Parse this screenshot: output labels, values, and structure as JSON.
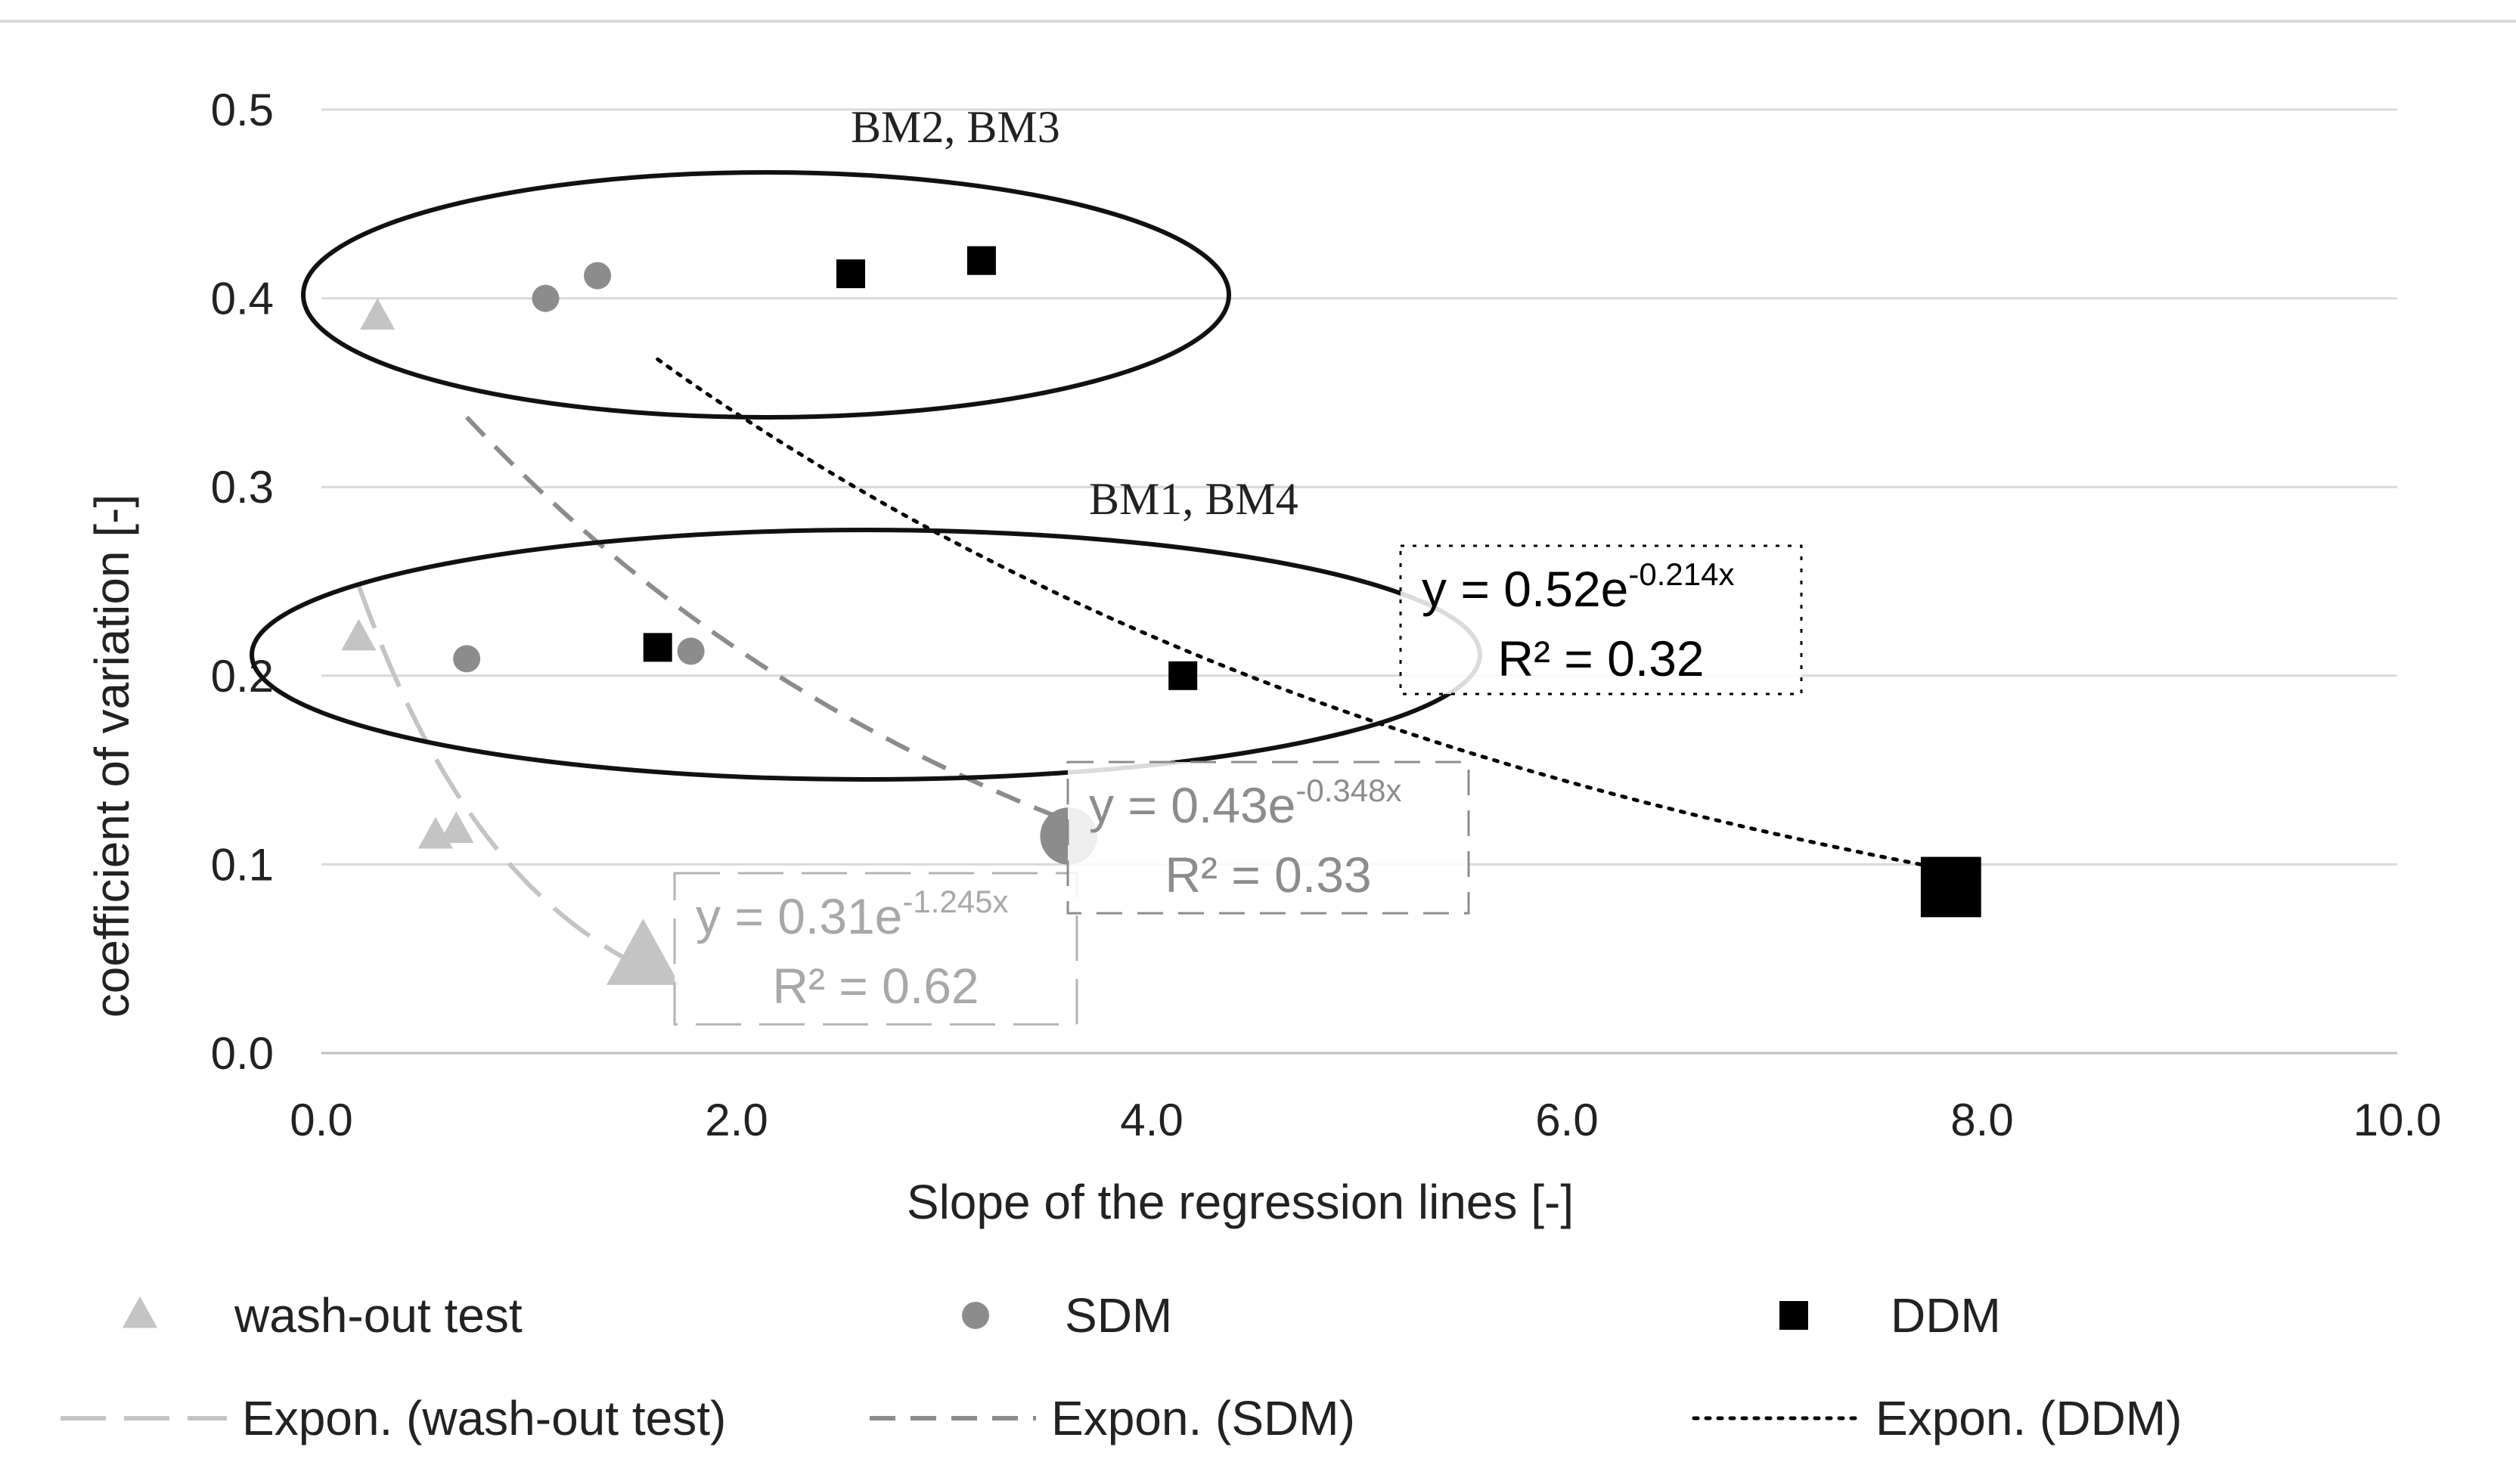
{
  "chart_data": {
    "type": "scatter",
    "xlabel": "Slope of the regression lines [-]",
    "ylabel": "coefficient of variation [-]",
    "xlim": [
      0,
      10
    ],
    "ylim": [
      0,
      0.5
    ],
    "x_ticks": [
      "0.0",
      "2.0",
      "4.0",
      "6.0",
      "8.0",
      "10.0"
    ],
    "y_ticks": [
      "0.0",
      "0.1",
      "0.2",
      "0.3",
      "0.4",
      "0.5"
    ],
    "grid": true,
    "series": [
      {
        "name": "wash-out test",
        "marker": "triangle",
        "color": "#c4c4c4",
        "points": [
          {
            "x": 0.27,
            "y": 0.39,
            "size": "small"
          },
          {
            "x": 0.18,
            "y": 0.22,
            "size": "small"
          },
          {
            "x": 0.55,
            "y": 0.115,
            "size": "small"
          },
          {
            "x": 0.65,
            "y": 0.118,
            "size": "small"
          },
          {
            "x": 1.55,
            "y": 0.05,
            "size": "large"
          }
        ]
      },
      {
        "name": "SDM",
        "marker": "circle",
        "color": "#8c8c8c",
        "points": [
          {
            "x": 1.08,
            "y": 0.4,
            "size": "small"
          },
          {
            "x": 1.33,
            "y": 0.412,
            "size": "small"
          },
          {
            "x": 0.7,
            "y": 0.209,
            "size": "small"
          },
          {
            "x": 1.78,
            "y": 0.213,
            "size": "small"
          },
          {
            "x": 3.6,
            "y": 0.115,
            "size": "large"
          }
        ]
      },
      {
        "name": "DDM",
        "marker": "square",
        "color": "#000000",
        "points": [
          {
            "x": 2.55,
            "y": 0.413,
            "size": "small"
          },
          {
            "x": 3.18,
            "y": 0.42,
            "size": "small"
          },
          {
            "x": 1.62,
            "y": 0.215,
            "size": "small"
          },
          {
            "x": 4.15,
            "y": 0.2,
            "size": "small"
          },
          {
            "x": 7.85,
            "y": 0.088,
            "size": "large"
          }
        ]
      }
    ],
    "trendlines": [
      {
        "name": "Expon. (wash-out test)",
        "series": "wash-out test",
        "a": 0.31,
        "b": -1.245,
        "x_range": [
          0.18,
          1.55
        ],
        "color": "#c4c4c4",
        "style": "long-dash",
        "equation_prefix": "y = 0.31e",
        "equation_exponent": "-1.245x",
        "r2": "R² = 0.62"
      },
      {
        "name": "Expon. (SDM)",
        "series": "SDM",
        "a": 0.43,
        "b": -0.348,
        "x_range": [
          0.7,
          3.6
        ],
        "color": "#8c8c8c",
        "style": "dash",
        "equation_prefix": "y = 0.43e",
        "equation_exponent": "-0.348x",
        "r2": "R² = 0.33"
      },
      {
        "name": "Expon. (DDM)",
        "series": "DDM",
        "a": 0.52,
        "b": -0.214,
        "x_range": [
          1.62,
          7.85
        ],
        "color": "#000000",
        "style": "dotted",
        "equation_prefix": "y = 0.52e",
        "equation_exponent": "-0.214x",
        "r2": "R² = 0.32"
      }
    ],
    "annotations": [
      {
        "text": "BM2, BM3"
      },
      {
        "text": "BM1, BM4"
      }
    ],
    "legend": {
      "placement": "bottom",
      "entries": [
        {
          "label": "wash-out test",
          "kind": "marker",
          "series": "wash-out test"
        },
        {
          "label": "SDM",
          "kind": "marker",
          "series": "SDM"
        },
        {
          "label": "DDM",
          "kind": "marker",
          "series": "DDM"
        },
        {
          "label": "Expon. (wash-out test)",
          "kind": "line",
          "series": "wash-out test"
        },
        {
          "label": "Expon. (SDM)",
          "kind": "line",
          "series": "SDM"
        },
        {
          "label": "Expon. (DDM)",
          "kind": "line",
          "series": "DDM"
        }
      ]
    }
  }
}
